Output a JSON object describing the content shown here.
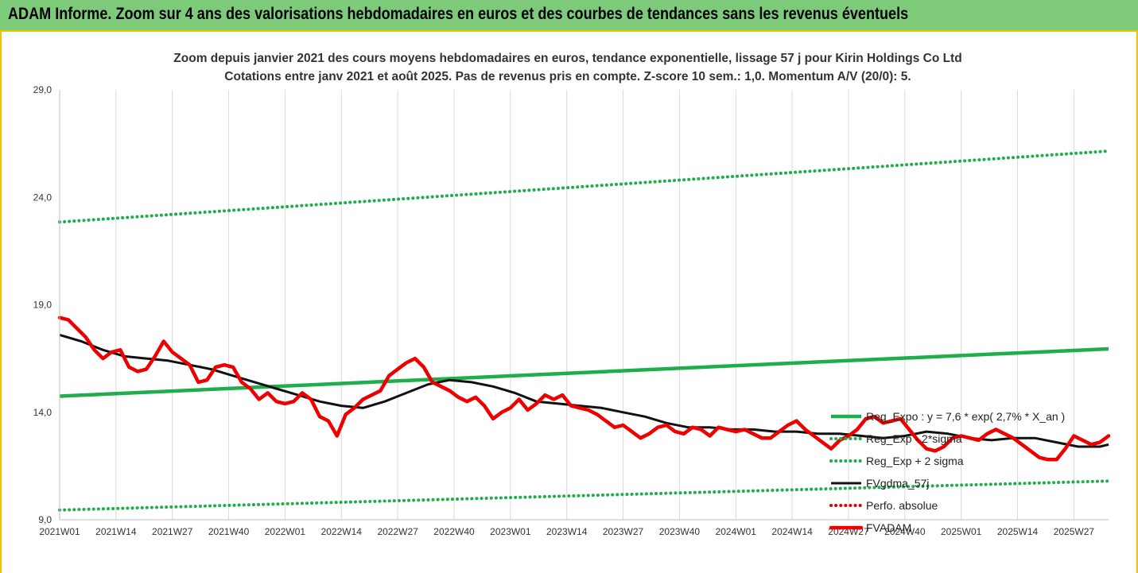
{
  "banner": {
    "title": "ADAM Informe. Zoom sur 4 ans des valorisations hebdomadaires en euros et des courbes de tendances sans les revenus éventuels"
  },
  "chart_data": {
    "type": "line",
    "title": "Zoom depuis janvier 2021 des cours moyens hebdomadaires en euros, tendance exponentielle, lissage 57 j pour Kirin Holdings Co Ltd",
    "subtitle": "Cotations entre janv 2021 et août 2025.  Pas de revenus pris en compte. Z-score 10 sem.: 1,0. Momentum A/V (20/0): 5.",
    "xlabel": "",
    "ylabel": "",
    "ylim": [
      9,
      29
    ],
    "xlim": [
      1,
      243
    ],
    "y_ticks": [
      9,
      14,
      19,
      24,
      29
    ],
    "y_tick_labels": [
      "9,0",
      "14,0",
      "19,0",
      "24,0",
      "29,0"
    ],
    "x_ticks": [
      1,
      14,
      27,
      40,
      53,
      66,
      79,
      92,
      105,
      118,
      131,
      144,
      157,
      170,
      183,
      196,
      209,
      222,
      235
    ],
    "x_tick_labels": [
      "2021W01",
      "2021W14",
      "2021W27",
      "2021W40",
      "2022W01",
      "2022W14",
      "2022W27",
      "2022W40",
      "2023W01",
      "2023W14",
      "2023W27",
      "2023W40",
      "2024W01",
      "2024W14",
      "2024W27",
      "2024W40",
      "2025W01",
      "2025W14",
      "2025W27"
    ],
    "grid": {
      "vertical": true,
      "horizontal": false
    },
    "legend_position": "right",
    "series": [
      {
        "name": "Reg_Expo : y = 7,6 * exp( 2,7% *  X_an )",
        "style": "solid",
        "color": "#1fae4b",
        "x": [
          1,
          243
        ],
        "y": [
          14.75,
          16.95
        ]
      },
      {
        "name": "Reg_Exp - 2*sigma",
        "style": "dotted",
        "color": "#1fae4b",
        "x": [
          1,
          243
        ],
        "y": [
          9.45,
          10.8
        ]
      },
      {
        "name": "Reg_Exp + 2 sigma",
        "style": "dotted",
        "color": "#1fae4b",
        "x": [
          1,
          243
        ],
        "y": [
          22.85,
          26.15
        ]
      },
      {
        "name": "FVgdma_57j",
        "style": "solid",
        "color": "#111111",
        "x": [
          1,
          6,
          11,
          16,
          21,
          26,
          31,
          36,
          41,
          46,
          51,
          56,
          61,
          66,
          71,
          76,
          81,
          86,
          91,
          96,
          101,
          106,
          111,
          116,
          121,
          126,
          131,
          136,
          141,
          146,
          151,
          156,
          161,
          166,
          171,
          176,
          181,
          186,
          191,
          196,
          201,
          206,
          211,
          216,
          221,
          226,
          231,
          236,
          241,
          243
        ],
        "y": [
          17.6,
          17.3,
          16.9,
          16.6,
          16.5,
          16.4,
          16.2,
          16.0,
          15.7,
          15.4,
          15.1,
          14.8,
          14.5,
          14.3,
          14.2,
          14.5,
          14.9,
          15.3,
          15.5,
          15.4,
          15.2,
          14.9,
          14.5,
          14.4,
          14.3,
          14.2,
          14.0,
          13.8,
          13.5,
          13.3,
          13.3,
          13.2,
          13.2,
          13.1,
          13.1,
          13.0,
          13.0,
          12.9,
          12.8,
          12.9,
          13.1,
          13.0,
          12.8,
          12.7,
          12.8,
          12.8,
          12.6,
          12.4,
          12.4,
          12.5
        ]
      },
      {
        "name": "Perfo. absolue",
        "style": "dotted",
        "color": "#e00000",
        "x": [],
        "y": []
      },
      {
        "name": "FVADAM",
        "style": "solid",
        "color": "#ee0000",
        "x": [
          1,
          3,
          5,
          7,
          9,
          11,
          13,
          15,
          17,
          19,
          21,
          23,
          25,
          27,
          29,
          31,
          33,
          35,
          37,
          39,
          41,
          43,
          45,
          47,
          49,
          51,
          53,
          55,
          57,
          59,
          61,
          63,
          65,
          67,
          69,
          71,
          73,
          75,
          77,
          79,
          81,
          83,
          85,
          87,
          89,
          91,
          93,
          95,
          97,
          99,
          101,
          103,
          105,
          107,
          109,
          111,
          113,
          115,
          117,
          119,
          121,
          123,
          125,
          127,
          129,
          131,
          133,
          135,
          137,
          139,
          141,
          143,
          145,
          147,
          149,
          151,
          153,
          155,
          157,
          159,
          161,
          163,
          165,
          167,
          169,
          171,
          173,
          175,
          177,
          179,
          181,
          183,
          185,
          187,
          189,
          191,
          193,
          195,
          197,
          199,
          201,
          203,
          205,
          207,
          209,
          211,
          213,
          215,
          217,
          219,
          221,
          223,
          225,
          227,
          229,
          231,
          233,
          235,
          237,
          239,
          241,
          243
        ],
        "y": [
          18.4,
          18.3,
          17.9,
          17.5,
          16.9,
          16.5,
          16.8,
          16.9,
          16.1,
          15.9,
          16.0,
          16.6,
          17.3,
          16.8,
          16.5,
          16.2,
          15.4,
          15.5,
          16.1,
          16.2,
          16.1,
          15.4,
          15.1,
          14.6,
          14.9,
          14.5,
          14.4,
          14.5,
          14.9,
          14.6,
          13.8,
          13.6,
          12.9,
          13.9,
          14.2,
          14.6,
          14.8,
          15.0,
          15.7,
          16.0,
          16.3,
          16.5,
          16.1,
          15.4,
          15.2,
          15.0,
          14.7,
          14.5,
          14.7,
          14.3,
          13.7,
          14.0,
          14.2,
          14.6,
          14.1,
          14.4,
          14.8,
          14.6,
          14.8,
          14.3,
          14.2,
          14.1,
          13.9,
          13.6,
          13.3,
          13.4,
          13.1,
          12.8,
          13.0,
          13.3,
          13.4,
          13.1,
          13.0,
          13.3,
          13.2,
          12.9,
          13.3,
          13.2,
          13.1,
          13.2,
          13.0,
          12.8,
          12.8,
          13.1,
          13.4,
          13.6,
          13.2,
          12.9,
          12.6,
          12.3,
          12.7,
          12.9,
          13.2,
          13.7,
          13.8,
          13.5,
          13.6,
          13.7,
          13.2,
          12.7,
          12.3,
          12.2,
          12.4,
          12.8,
          12.9,
          12.8,
          12.7,
          13.0,
          13.2,
          13.0,
          12.8,
          12.5,
          12.2,
          11.9,
          11.8,
          11.8,
          12.3,
          12.9,
          12.7,
          12.5,
          12.6,
          12.9
        ]
      }
    ]
  }
}
